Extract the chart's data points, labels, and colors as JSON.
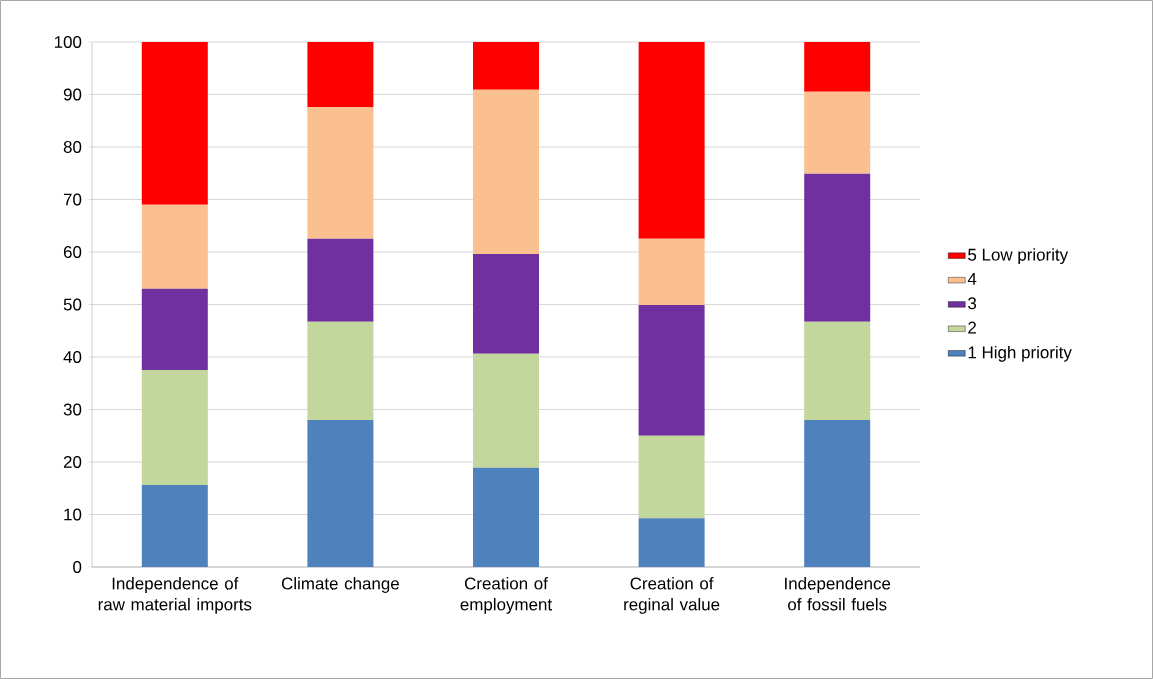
{
  "chart_data": {
    "type": "bar",
    "stacked": true,
    "categories": [
      "Independence of raw material imports",
      "Climate change",
      "Creation of employment",
      "Creation of reginal value",
      "Independence of fossil fuels"
    ],
    "series": [
      {
        "name": "1 High priority",
        "color": "#4f81bd",
        "values": [
          15.6,
          28,
          18.9,
          9.3,
          28
        ]
      },
      {
        "name": "2",
        "color": "#c3d69b",
        "values": [
          21.9,
          18.7,
          21.7,
          15.7,
          18.7
        ]
      },
      {
        "name": "3",
        "color": "#7030a0",
        "values": [
          15.5,
          15.8,
          19,
          24.9,
          28.2
        ]
      },
      {
        "name": "4",
        "color": "#fac090",
        "values": [
          16,
          25.1,
          31.3,
          12.6,
          15.6
        ]
      },
      {
        "name": "5 Low priority",
        "color": "#ff0000",
        "values": [
          31,
          12.4,
          9.1,
          37.5,
          9.5
        ]
      }
    ],
    "ylim": [
      0,
      100
    ],
    "yticks": [
      0,
      10,
      20,
      30,
      40,
      50,
      60,
      70,
      80,
      90,
      100
    ],
    "grid": "y",
    "legend": "right"
  }
}
